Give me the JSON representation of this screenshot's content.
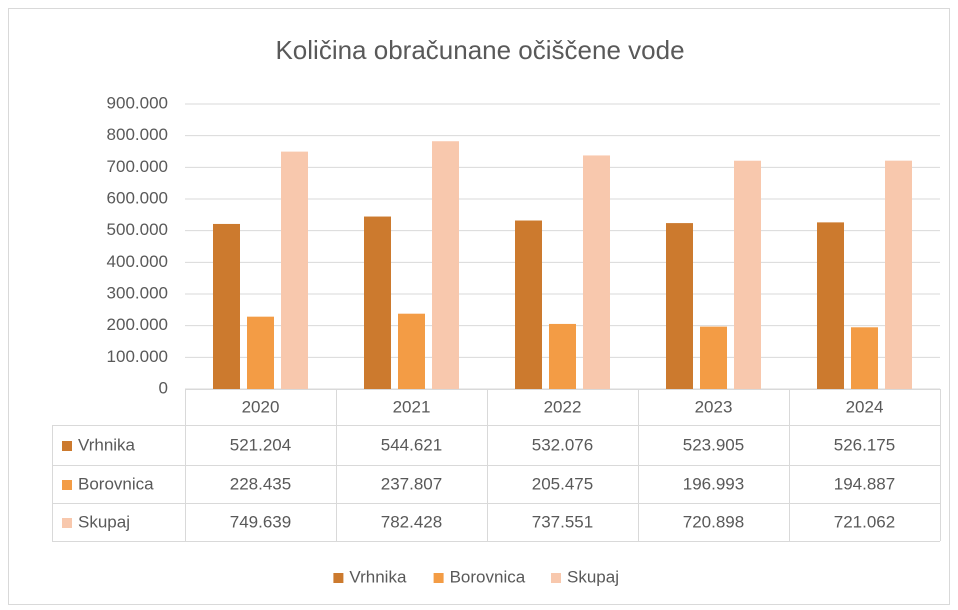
{
  "chart_data": {
    "type": "bar",
    "title": "Količina obračunane očiščene vode",
    "categories": [
      "2020",
      "2021",
      "2022",
      "2023",
      "2024"
    ],
    "series": [
      {
        "name": "Vrhnika",
        "color": "#cc7a2e",
        "values": [
          521204,
          544621,
          532076,
          523905,
          526175
        ],
        "value_labels": [
          "521.204",
          "544.621",
          "532.076",
          "523.905",
          "526.175"
        ]
      },
      {
        "name": "Borovnica",
        "color": "#f39c45",
        "values": [
          228435,
          237807,
          205475,
          196993,
          194887
        ],
        "value_labels": [
          "228.435",
          "237.807",
          "205.475",
          "196.993",
          "194.887"
        ]
      },
      {
        "name": "Skupaj",
        "color": "#f8c8ad",
        "values": [
          749639,
          782428,
          737551,
          720898,
          721062
        ],
        "value_labels": [
          "749.639",
          "782.428",
          "737.551",
          "720.898",
          "721.062"
        ]
      }
    ],
    "ylim": [
      0,
      900000
    ],
    "yticks": [
      0,
      {
        "value": 100000,
        "label": "100.000"
      },
      {
        "value": 200000,
        "label": "200.000"
      },
      {
        "value": 300000,
        "label": "300.000"
      },
      {
        "value": 400000,
        "label": "400.000"
      },
      {
        "value": 500000,
        "label": "500.000"
      },
      {
        "value": 600000,
        "label": "600.000"
      },
      {
        "value": 700000,
        "label": "700.000"
      },
      {
        "value": 800000,
        "label": "800.000"
      },
      {
        "value": 900000,
        "label": "900.000"
      }
    ],
    "grid": true,
    "legend": "bottom",
    "data_table": true
  }
}
